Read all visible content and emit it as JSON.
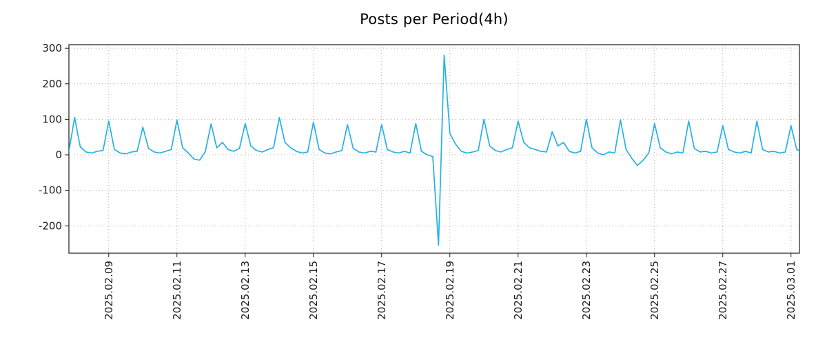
{
  "chart_data": {
    "type": "line",
    "title": "Posts per Period(4h)",
    "background": "#ffffff",
    "line_color": "#24b0e8",
    "grid_color": "#b3b3b3",
    "axis_color": "#1a1a1a",
    "grid_style": "dotted",
    "legend": "none",
    "start": "2025-02-07 20:00",
    "interval_hours": 4,
    "x_tick_interval_days": 2,
    "x_tick_labels": [
      "2025.02.09",
      "2025.02.11",
      "2025.02.13",
      "2025.02.15",
      "2025.02.17",
      "2025.02.19",
      "2025.02.21",
      "2025.02.23",
      "2025.02.25",
      "2025.02.27",
      "2025.03.01"
    ],
    "y_tick_values": [
      -200,
      -100,
      0,
      100,
      200,
      300
    ],
    "y_tick_labels": [
      "-200",
      "-100",
      "0",
      "100",
      "200",
      "300"
    ],
    "ylim": [
      -277,
      310
    ],
    "values": [
      10,
      105,
      22,
      8,
      5,
      10,
      12,
      95,
      15,
      5,
      3,
      8,
      10,
      78,
      18,
      8,
      5,
      10,
      15,
      98,
      20,
      5,
      -12,
      -15,
      10,
      87,
      20,
      35,
      15,
      10,
      18,
      88,
      25,
      12,
      8,
      15,
      20,
      105,
      35,
      20,
      10,
      5,
      8,
      92,
      15,
      5,
      3,
      8,
      12,
      85,
      18,
      8,
      5,
      10,
      8,
      85,
      15,
      8,
      5,
      10,
      5,
      88,
      10,
      0,
      -5,
      -255,
      280,
      60,
      30,
      10,
      5,
      8,
      12,
      100,
      25,
      12,
      8,
      15,
      20,
      95,
      35,
      20,
      15,
      10,
      8,
      65,
      25,
      35,
      10,
      5,
      10,
      100,
      20,
      5,
      0,
      8,
      5,
      98,
      15,
      -10,
      -30,
      -15,
      5,
      88,
      20,
      8,
      3,
      8,
      5,
      95,
      18,
      8,
      10,
      5,
      8,
      82,
      15,
      8,
      5,
      10,
      5,
      95,
      15,
      8,
      10,
      5,
      8,
      82,
      15,
      8
    ]
  }
}
